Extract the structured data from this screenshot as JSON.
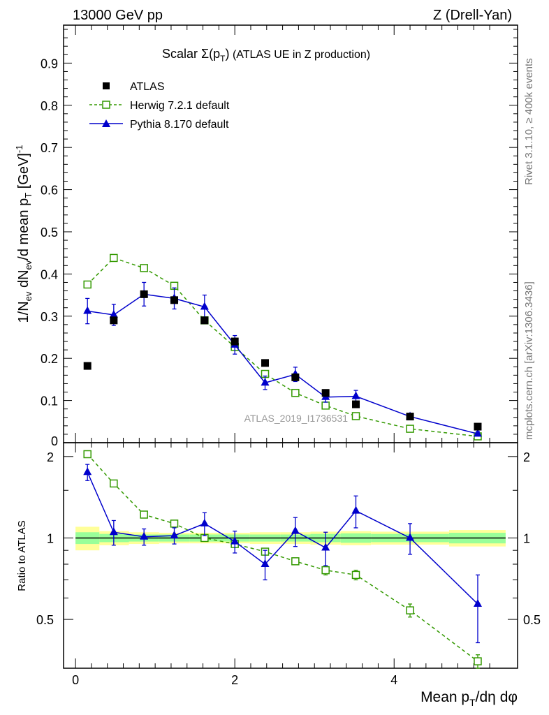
{
  "header": {
    "left": "13000 GeV pp",
    "right": "Z (Drell-Yan)"
  },
  "side_text": {
    "rivet": "Rivet 3.1.10, ≥ 400k events",
    "mcplots": "mcplots.cern.ch [arXiv:1306.3436]"
  },
  "watermark": "ATLAS_2019_I1736531",
  "chart_data": [
    {
      "type": "scatter",
      "panel": "main",
      "title_prefix": "Scalar ",
      "title_sigma": "Σ(p",
      "title_sub": "T",
      "title_close": ")",
      "title_suffix": " (ATLAS UE in Z production)",
      "ylabel": "1/N_ev dN_ev/d mean p_T [GeV]^-1",
      "ylabel_parts": {
        "a": "1/N",
        "b": "ev",
        "c": " dN",
        "d": "ev",
        "e": "/d mean p",
        "f": "T",
        "g": " [GeV]",
        "h": "-1"
      },
      "xlim": [
        -0.15,
        5.55
      ],
      "ylim": [
        0,
        0.99
      ],
      "yticks": [
        0,
        0.1,
        0.2,
        0.3,
        0.4,
        0.5,
        0.6,
        0.7,
        0.8,
        0.9
      ],
      "ytick_labels": [
        "0",
        "0.1",
        "0.2",
        "0.3",
        "0.4",
        "0.5",
        "0.6",
        "0.7",
        "0.8",
        "0.9"
      ],
      "legend_position": "top-left",
      "series": [
        {
          "name": "ATLAS",
          "style": "data",
          "color": "#000000",
          "x": [
            0.15,
            0.48,
            0.86,
            1.24,
            1.62,
            2.0,
            2.38,
            2.76,
            3.14,
            3.52,
            4.2,
            5.05
          ],
          "y": [
            0.182,
            0.29,
            0.352,
            0.338,
            0.29,
            0.24,
            0.189,
            0.155,
            0.118,
            0.091,
            0.062,
            0.038
          ]
        },
        {
          "name": "Herwig 7.2.1 default",
          "style": "dashed-open-square",
          "color": "#339900",
          "x": [
            0.15,
            0.48,
            0.86,
            1.24,
            1.62,
            2.0,
            2.38,
            2.76,
            3.14,
            3.52,
            4.2,
            5.05
          ],
          "y": [
            0.375,
            0.438,
            0.414,
            0.372,
            0.29,
            0.227,
            0.163,
            0.118,
            0.088,
            0.063,
            0.033,
            0.015
          ],
          "err": [
            0.005,
            0.005,
            0.005,
            0.005,
            0.004,
            0.004,
            0.004,
            0.004,
            0.003,
            0.003,
            0.003,
            0.002
          ]
        },
        {
          "name": "Pythia 8.170 default",
          "style": "solid-triangle",
          "color": "#0000cc",
          "x": [
            0.15,
            0.48,
            0.86,
            1.24,
            1.62,
            2.0,
            2.38,
            2.76,
            3.14,
            3.52,
            4.2,
            5.05
          ],
          "y": [
            0.312,
            0.303,
            0.352,
            0.342,
            0.322,
            0.232,
            0.142,
            0.162,
            0.108,
            0.11,
            0.062,
            0.021
          ],
          "err": [
            0.03,
            0.025,
            0.028,
            0.025,
            0.028,
            0.022,
            0.016,
            0.017,
            0.012,
            0.014,
            0.007,
            0.005
          ]
        }
      ]
    },
    {
      "type": "scatter",
      "panel": "ratio",
      "ylabel": "Ratio to ATLAS",
      "xlabel": "Mean p_T/dη dφ",
      "xlabel_parts": {
        "a": "Mean p",
        "b": "T",
        "c": "/dη dφ"
      },
      "xlim": [
        -0.15,
        5.55
      ],
      "ylim": [
        0.33,
        2.25
      ],
      "yticks": [
        0.5,
        1,
        2
      ],
      "ytick_labels": [
        "0.5",
        "1",
        "2"
      ],
      "xticks": [
        0,
        2,
        4
      ],
      "xtick_labels": [
        "0",
        "2",
        "4"
      ],
      "reference": 1,
      "bins": [
        0.0,
        0.3,
        0.67,
        1.05,
        1.43,
        1.81,
        2.19,
        2.57,
        2.95,
        3.33,
        3.71,
        4.69,
        5.4
      ],
      "band_inner": [
        0.05,
        0.035,
        0.03,
        0.03,
        0.03,
        0.03,
        0.03,
        0.03,
        0.035,
        0.04,
        0.035,
        0.045
      ],
      "band_outer": [
        0.1,
        0.06,
        0.05,
        0.045,
        0.045,
        0.045,
        0.05,
        0.05,
        0.055,
        0.06,
        0.055,
        0.07
      ],
      "band_colors": {
        "inner": "#99ff99",
        "outer": "#ffff99"
      },
      "series": [
        {
          "name": "Herwig 7.2.1 default",
          "color": "#339900",
          "x": [
            0.15,
            0.48,
            0.86,
            1.24,
            1.62,
            2.0,
            2.38,
            2.76,
            3.14,
            3.52,
            4.2,
            5.05
          ],
          "y": [
            2.04,
            1.59,
            1.22,
            1.13,
            1.0,
            0.95,
            0.89,
            0.82,
            0.76,
            0.73,
            0.54,
            0.35
          ],
          "err": [
            0.03,
            0.03,
            0.02,
            0.02,
            0.02,
            0.02,
            0.02,
            0.02,
            0.03,
            0.03,
            0.03,
            0.02
          ]
        },
        {
          "name": "Pythia 8.170 default",
          "color": "#0000cc",
          "x": [
            0.15,
            0.48,
            0.86,
            1.24,
            1.62,
            2.0,
            2.38,
            2.76,
            3.14,
            3.52,
            4.2,
            5.05
          ],
          "y": [
            1.75,
            1.05,
            1.01,
            1.02,
            1.13,
            0.97,
            0.8,
            1.06,
            0.92,
            1.26,
            1.0,
            0.57
          ],
          "err": [
            0.12,
            0.11,
            0.07,
            0.07,
            0.11,
            0.09,
            0.1,
            0.13,
            0.13,
            0.17,
            0.13,
            0.16
          ]
        }
      ]
    }
  ]
}
